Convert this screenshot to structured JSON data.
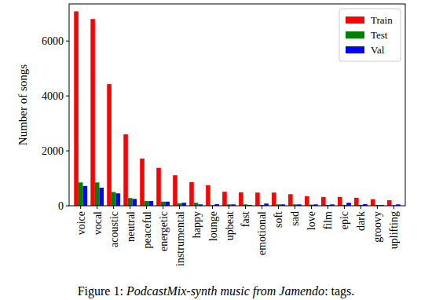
{
  "chart_data": {
    "type": "bar",
    "caption": "Figure 1: PodcastMix-synth music from Jamendo: tags.",
    "y_label": "Number of songs",
    "categories": [
      "voice",
      "vocal",
      "acoustic",
      "neutral",
      "peaceful",
      "energetic",
      "instrumental",
      "happy",
      "lounge",
      "upbeat",
      "fast",
      "emotional",
      "soft",
      "sad",
      "love",
      "film",
      "epic",
      "dark",
      "groovy",
      "uplifting"
    ],
    "series": [
      {
        "name": "Train",
        "color": "#ff0000",
        "values": [
          7080,
          6800,
          4430,
          2600,
          1720,
          1380,
          1110,
          860,
          750,
          510,
          490,
          480,
          480,
          420,
          350,
          320,
          320,
          290,
          240,
          200
        ]
      },
      {
        "name": "Test",
        "color": "#008000",
        "values": [
          850,
          850,
          500,
          280,
          170,
          150,
          90,
          110,
          20,
          50,
          50,
          30,
          50,
          50,
          40,
          30,
          30,
          30,
          30,
          20
        ]
      },
      {
        "name": "Val",
        "color": "#0000ff",
        "values": [
          720,
          660,
          450,
          250,
          170,
          150,
          110,
          50,
          60,
          50,
          30,
          80,
          50,
          50,
          50,
          50,
          110,
          60,
          30,
          50
        ]
      }
    ],
    "ylim": [
      0,
      7350
    ],
    "yticks": [
      0,
      2000,
      4000,
      6000
    ],
    "legend": "upper right",
    "grid": false
  }
}
